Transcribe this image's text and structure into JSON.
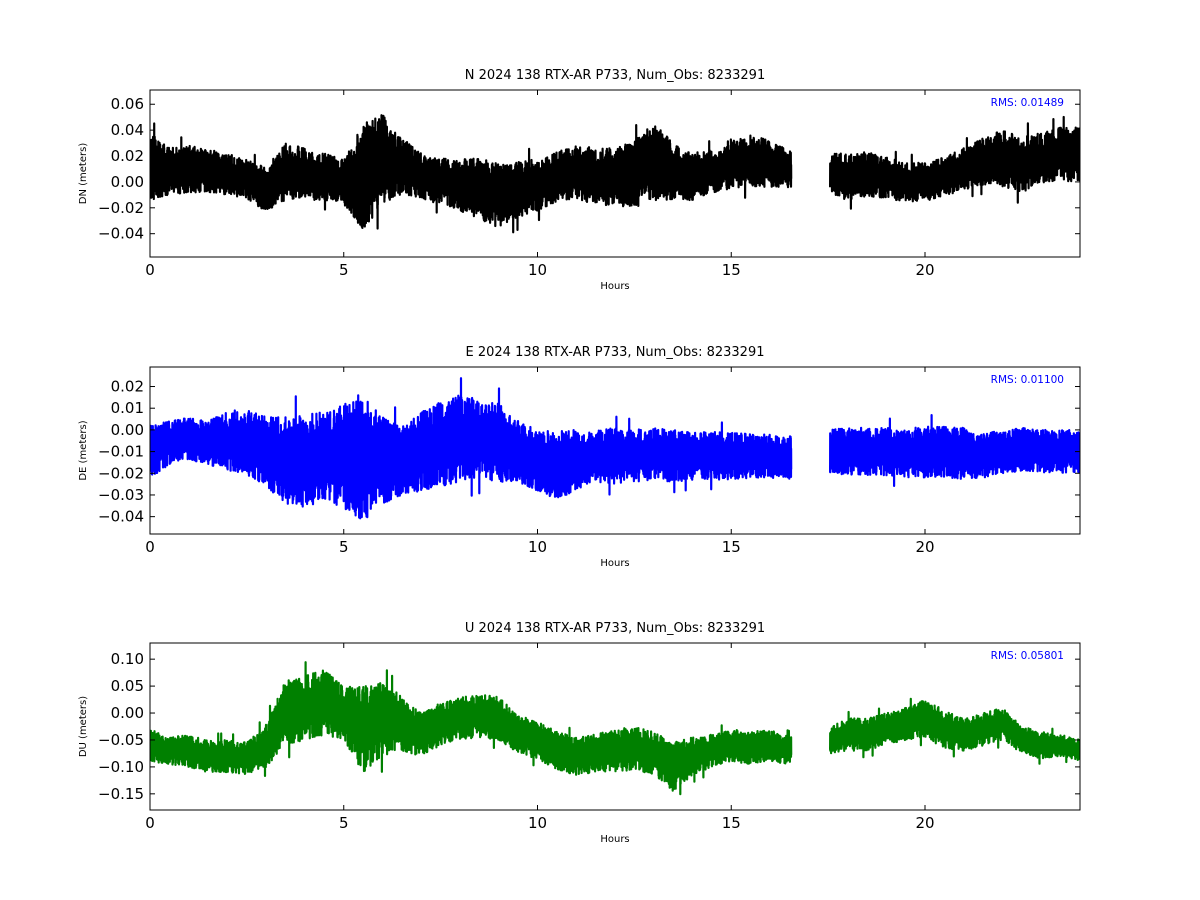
{
  "chart_data": [
    {
      "type": "line",
      "title": "N 2024 138 RTX-AR  P733, Num_Obs: 8233291",
      "xlabel": "Hours",
      "ylabel": "DN (meters)",
      "xlim": [
        0,
        24
      ],
      "ylim": [
        -0.058,
        0.071
      ],
      "xticks": [
        0,
        5,
        10,
        15,
        20
      ],
      "xtick_labels": [
        "0",
        "5",
        "10",
        "15",
        "20"
      ],
      "yticks": [
        -0.04,
        -0.02,
        0.0,
        0.02,
        0.04,
        0.06
      ],
      "ytick_labels": [
        "−0.04",
        "−0.02",
        "0.00",
        "0.02",
        "0.04",
        "0.06"
      ],
      "color": "#000000",
      "annotation": {
        "text": "RMS:  0.01489",
        "color": "#0000ff"
      },
      "gap": [
        16.55,
        17.55
      ],
      "series": [
        {
          "hours": [
            0,
            0.5,
            1,
            1.5,
            2,
            2.5,
            3,
            3.5,
            4,
            4.5,
            5,
            5.5,
            6,
            6.5,
            7,
            7.5,
            8,
            8.5,
            9,
            9.5,
            10,
            10.5,
            11,
            11.5,
            12,
            12.5,
            13,
            13.5,
            14,
            14.5,
            15,
            15.5,
            16,
            16.55,
            17.55,
            18,
            18.5,
            19,
            19.5,
            20,
            20.5,
            21,
            21.5,
            22,
            22.5,
            23,
            23.5,
            24
          ],
          "mean": [
            0.012,
            0.008,
            0.01,
            0.008,
            0.006,
            0.002,
            -0.006,
            0.008,
            0.006,
            0.004,
            0.0,
            0.004,
            0.018,
            0.012,
            0.004,
            0.001,
            -0.002,
            -0.006,
            -0.01,
            -0.006,
            -0.002,
            0.004,
            0.008,
            0.004,
            0.004,
            0.006,
            0.016,
            0.008,
            0.004,
            0.008,
            0.014,
            0.016,
            0.014,
            0.01,
            0.006,
            0.004,
            0.006,
            0.003,
            0.0,
            0.0,
            0.004,
            0.01,
            0.016,
            0.018,
            0.014,
            0.018,
            0.022,
            0.02
          ],
          "amplitude": [
            0.026,
            0.018,
            0.018,
            0.017,
            0.016,
            0.015,
            0.017,
            0.022,
            0.02,
            0.018,
            0.017,
            0.042,
            0.034,
            0.022,
            0.018,
            0.018,
            0.02,
            0.024,
            0.025,
            0.022,
            0.02,
            0.019,
            0.021,
            0.022,
            0.022,
            0.026,
            0.03,
            0.022,
            0.018,
            0.017,
            0.019,
            0.02,
            0.018,
            0.014,
            0.016,
            0.018,
            0.017,
            0.016,
            0.015,
            0.015,
            0.015,
            0.016,
            0.018,
            0.022,
            0.022,
            0.02,
            0.02,
            0.022
          ]
        }
      ]
    },
    {
      "type": "line",
      "title": "E 2024 138 RTX-AR  P733, Num_Obs: 8233291",
      "xlabel": "Hours",
      "ylabel": "DE (meters)",
      "xlim": [
        0,
        24
      ],
      "ylim": [
        -0.048,
        0.029
      ],
      "xticks": [
        0,
        5,
        10,
        15,
        20
      ],
      "xtick_labels": [
        "0",
        "5",
        "10",
        "15",
        "20"
      ],
      "yticks": [
        -0.04,
        -0.03,
        -0.02,
        -0.01,
        0.0,
        0.01,
        0.02
      ],
      "ytick_labels": [
        "−0.04",
        "−0.03",
        "−0.02",
        "−0.01",
        "0.00",
        "0.01",
        "0.02"
      ],
      "color": "#0000ff",
      "annotation": {
        "text": "RMS:  0.01100",
        "color": "#0000ff"
      },
      "gap": [
        16.55,
        17.55
      ],
      "series": [
        {
          "hours": [
            0,
            0.5,
            1,
            1.5,
            2,
            2.5,
            3,
            3.5,
            4,
            4.5,
            5,
            5.5,
            6,
            6.5,
            7,
            7.5,
            8,
            8.5,
            9,
            9.5,
            10,
            10.5,
            11,
            11.5,
            12,
            12.5,
            13,
            13.5,
            14,
            14.5,
            15,
            15.5,
            16,
            16.55,
            17.55,
            18,
            18.5,
            19,
            19.5,
            20,
            20.5,
            21,
            21.5,
            22,
            22.5,
            23,
            23.5,
            24
          ],
          "mean": [
            -0.01,
            -0.006,
            -0.004,
            -0.006,
            -0.005,
            -0.006,
            -0.01,
            -0.014,
            -0.014,
            -0.012,
            -0.012,
            -0.012,
            -0.014,
            -0.014,
            -0.01,
            -0.006,
            -0.004,
            -0.004,
            -0.006,
            -0.01,
            -0.014,
            -0.016,
            -0.014,
            -0.012,
            -0.012,
            -0.012,
            -0.011,
            -0.012,
            -0.012,
            -0.012,
            -0.012,
            -0.012,
            -0.012,
            -0.013,
            -0.01,
            -0.01,
            -0.01,
            -0.01,
            -0.011,
            -0.01,
            -0.01,
            -0.011,
            -0.012,
            -0.01,
            -0.009,
            -0.01,
            -0.01,
            -0.01
          ],
          "amplitude": [
            0.012,
            0.01,
            0.01,
            0.01,
            0.014,
            0.015,
            0.016,
            0.02,
            0.022,
            0.02,
            0.024,
            0.03,
            0.02,
            0.016,
            0.018,
            0.02,
            0.02,
            0.018,
            0.018,
            0.014,
            0.014,
            0.016,
            0.014,
            0.012,
            0.013,
            0.012,
            0.012,
            0.012,
            0.011,
            0.011,
            0.011,
            0.01,
            0.01,
            0.01,
            0.01,
            0.011,
            0.011,
            0.011,
            0.011,
            0.012,
            0.012,
            0.012,
            0.01,
            0.01,
            0.01,
            0.01,
            0.01,
            0.01
          ]
        }
      ]
    },
    {
      "type": "line",
      "title": "U 2024 138 RTX-AR  P733, Num_Obs: 8233291",
      "xlabel": "Hours",
      "ylabel": "DU (meters)",
      "xlim": [
        0,
        24
      ],
      "ylim": [
        -0.18,
        0.13
      ],
      "xticks": [
        0,
        5,
        10,
        15,
        20
      ],
      "xtick_labels": [
        "0",
        "5",
        "10",
        "15",
        "20"
      ],
      "yticks": [
        -0.15,
        -0.1,
        -0.05,
        0.0,
        0.05,
        0.1
      ],
      "ytick_labels": [
        "−0.15",
        "−0.10",
        "−0.05",
        "0.00",
        "0.05",
        "0.10"
      ],
      "color": "#008000",
      "annotation": {
        "text": "RMS:  0.05801",
        "color": "#0000ff"
      },
      "gap": [
        16.55,
        17.55
      ],
      "series": [
        {
          "hours": [
            0,
            0.5,
            1,
            1.5,
            2,
            2.5,
            3,
            3.5,
            4,
            4.5,
            5,
            5.5,
            6,
            6.5,
            7,
            7.5,
            8,
            8.5,
            9,
            9.5,
            10,
            10.5,
            11,
            11.5,
            12,
            12.5,
            13,
            13.5,
            14,
            14.5,
            15,
            15.5,
            16,
            16.55,
            17.55,
            18,
            18.5,
            19,
            19.5,
            20,
            20.5,
            21,
            21.5,
            22,
            22.5,
            23,
            23.5,
            24
          ],
          "mean": [
            -0.06,
            -0.07,
            -0.07,
            -0.08,
            -0.08,
            -0.085,
            -0.06,
            0.0,
            0.01,
            0.02,
            0.0,
            -0.03,
            -0.01,
            -0.02,
            -0.04,
            -0.02,
            -0.01,
            -0.005,
            -0.01,
            -0.04,
            -0.05,
            -0.07,
            -0.08,
            -0.075,
            -0.07,
            -0.065,
            -0.075,
            -0.1,
            -0.08,
            -0.07,
            -0.06,
            -0.065,
            -0.06,
            -0.07,
            -0.05,
            -0.04,
            -0.04,
            -0.03,
            -0.02,
            -0.01,
            -0.03,
            -0.04,
            -0.03,
            -0.02,
            -0.05,
            -0.06,
            -0.06,
            -0.07
          ],
          "amplitude": [
            0.03,
            0.025,
            0.03,
            0.03,
            0.03,
            0.03,
            0.04,
            0.06,
            0.06,
            0.06,
            0.05,
            0.08,
            0.07,
            0.05,
            0.04,
            0.04,
            0.04,
            0.04,
            0.04,
            0.035,
            0.035,
            0.035,
            0.035,
            0.035,
            0.04,
            0.04,
            0.04,
            0.045,
            0.035,
            0.03,
            0.03,
            0.03,
            0.03,
            0.025,
            0.025,
            0.03,
            0.03,
            0.03,
            0.03,
            0.035,
            0.035,
            0.03,
            0.03,
            0.03,
            0.025,
            0.025,
            0.02,
            0.02
          ]
        }
      ]
    }
  ]
}
